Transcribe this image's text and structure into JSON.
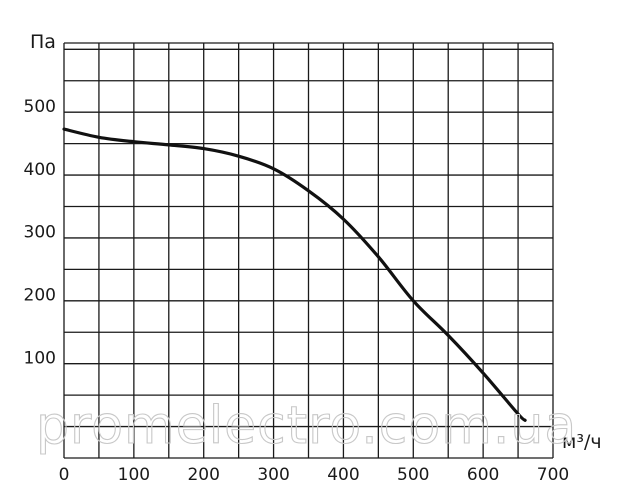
{
  "chart_data": {
    "type": "line",
    "xlabel": "м³/ч",
    "ylabel": "Па",
    "xlim": [
      0,
      700
    ],
    "ylim": [
      -60,
      600
    ],
    "x_ticks": [
      "0",
      "100",
      "200",
      "300",
      "400",
      "500",
      "600",
      "700"
    ],
    "y_ticks": [
      "100",
      "200",
      "300",
      "400",
      "500"
    ],
    "grid": true,
    "series": [
      {
        "x": [
          0,
          50,
          100,
          150,
          200,
          250,
          300,
          350,
          400,
          450,
          500,
          550,
          600,
          650,
          660
        ],
        "values": [
          463,
          450,
          443,
          438,
          432,
          420,
          400,
          365,
          320,
          260,
          190,
          135,
          75,
          10,
          0
        ]
      }
    ]
  },
  "watermark": "promelectro.com.ua"
}
